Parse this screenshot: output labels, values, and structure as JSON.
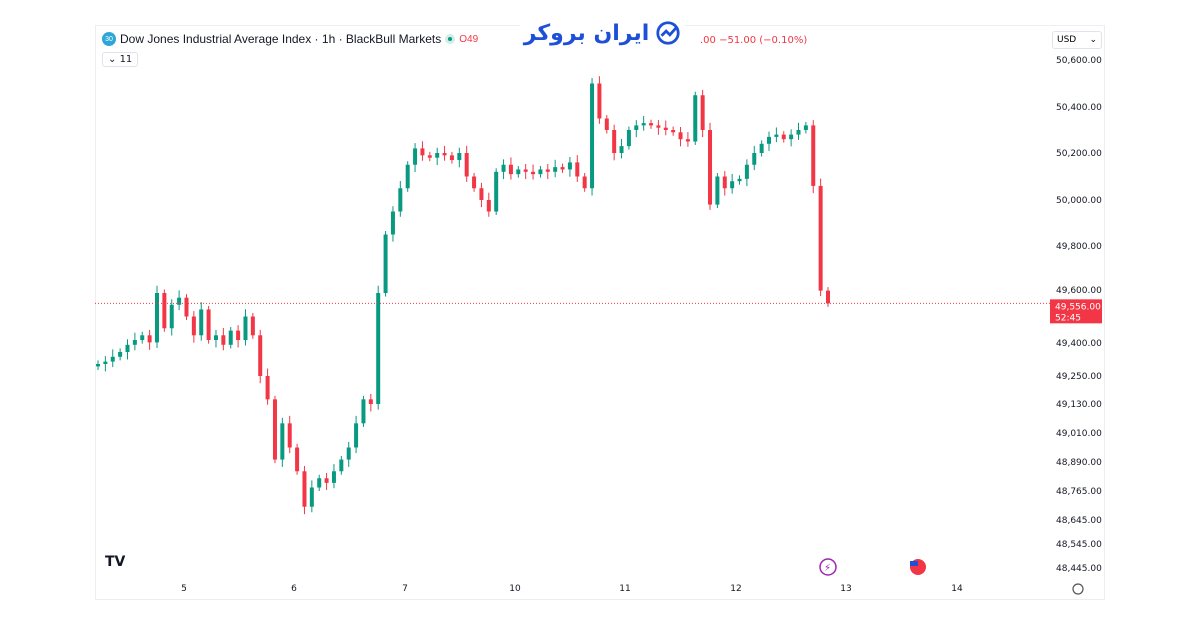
{
  "header": {
    "symbol_badge": "30",
    "title": "Dow Jones Industrial Average Index · 1h · BlackBull Markets",
    "ohlc_fragment": "O49",
    "change_text": ".00 −51.00 (−0.10%)",
    "indicators_label": "11"
  },
  "logo_text": "ایران بروکر",
  "currency_selector": "USD",
  "price_marker": {
    "price": "49,556.00",
    "countdown": "52:45"
  },
  "colors": {
    "up": "#089981",
    "down": "#f23645",
    "logo": "#1d4fd8"
  },
  "icons": [
    "tradingview-logo-icon",
    "lightning-event-icon",
    "us-flag-icon",
    "settings-icon",
    "chevron-down-icon"
  ],
  "chart_data": {
    "type": "candlestick",
    "y_ticks": [
      "50,600.00",
      "50,400.00",
      "50,200.00",
      "50,000.00",
      "49,800.00",
      "49,600.00",
      "49,400.00",
      "49,250.00",
      "49,130.00",
      "49,010.00",
      "48,890.00",
      "48,765.00",
      "48,645.00",
      "48,545.00",
      "48,445.00"
    ],
    "y_tick_values": [
      50600,
      50400,
      50200,
      50000,
      49800,
      49600,
      49400,
      49250,
      49130,
      49010,
      48890,
      48765,
      48645,
      48545,
      48445
    ],
    "x_ticks": [
      "5",
      "6",
      "7",
      "10",
      "11",
      "12",
      "13",
      "14"
    ],
    "last_price": 49556,
    "closes": [
      49300,
      49310,
      49330,
      49350,
      49380,
      49400,
      49420,
      49390,
      49600,
      49450,
      49550,
      49580,
      49500,
      49420,
      49530,
      49400,
      49420,
      49380,
      49440,
      49400,
      49500,
      49420,
      49250,
      49150,
      48900,
      49050,
      48950,
      48850,
      48700,
      48780,
      48820,
      48800,
      48850,
      48900,
      48950,
      49050,
      49150,
      49130,
      49600,
      49850,
      49950,
      50050,
      50150,
      50220,
      50190,
      50180,
      50200,
      50190,
      50170,
      50200,
      50100,
      50050,
      50000,
      49950,
      50120,
      50150,
      50110,
      50130,
      50120,
      50110,
      50130,
      50120,
      50140,
      50130,
      50160,
      50100,
      50050,
      50500,
      50350,
      50300,
      50200,
      50230,
      50300,
      50320,
      50330,
      50320,
      50310,
      50300,
      50290,
      50260,
      50250,
      50450,
      50300,
      49980,
      50100,
      50050,
      50080,
      50090,
      50150,
      50200,
      50240,
      50270,
      50280,
      50260,
      50280,
      50300,
      50320,
      50060,
      49610,
      49556
    ]
  }
}
